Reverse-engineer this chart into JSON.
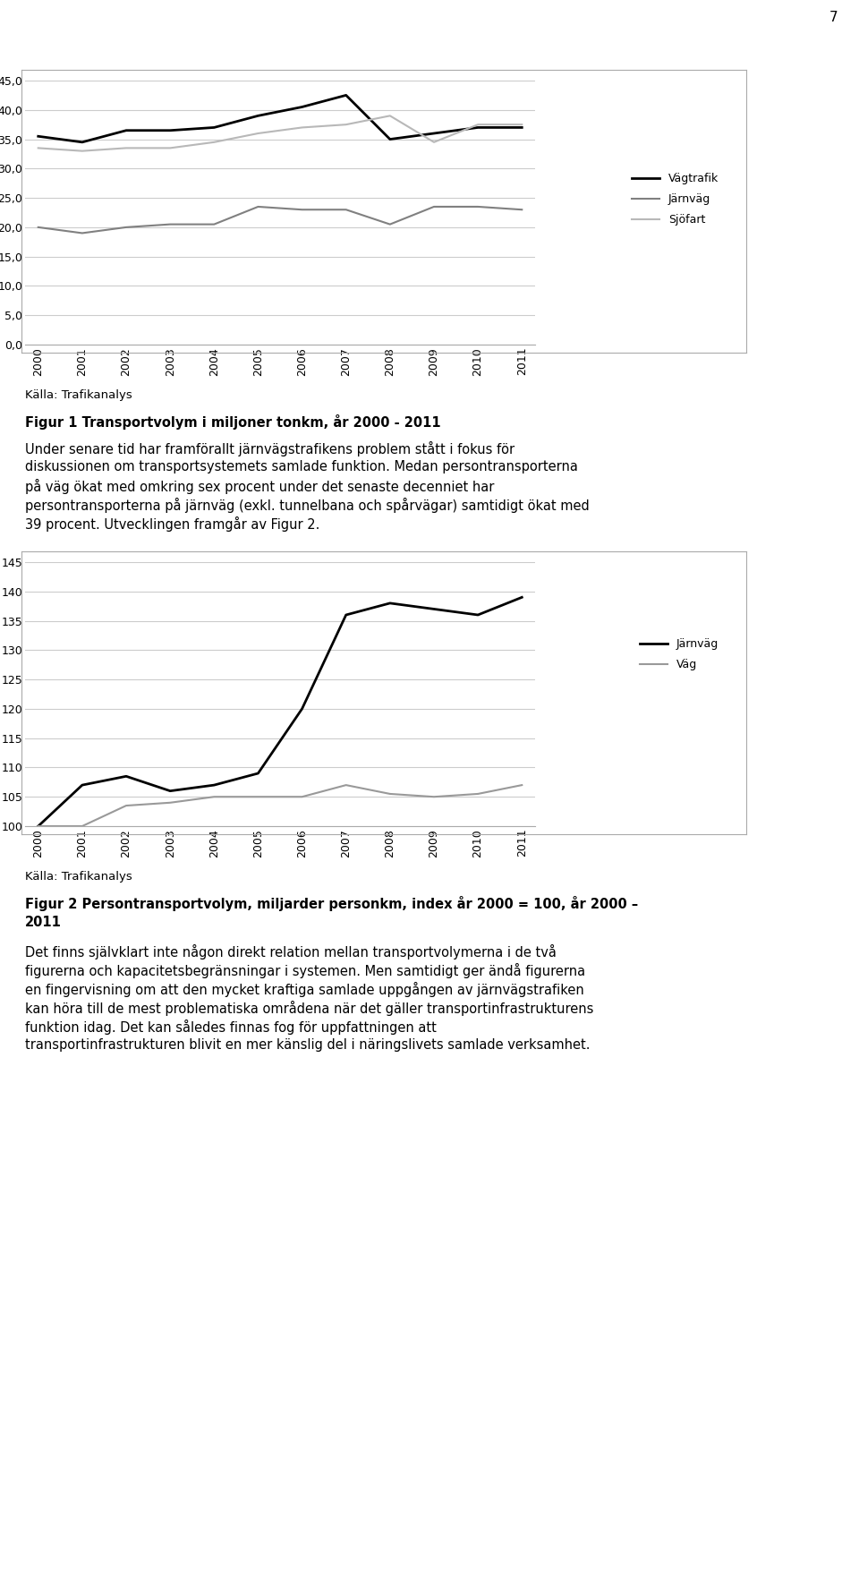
{
  "years": [
    2000,
    2001,
    2002,
    2003,
    2004,
    2005,
    2006,
    2007,
    2008,
    2009,
    2010,
    2011
  ],
  "fig1": {
    "vagtrafik": [
      35.5,
      34.5,
      36.5,
      36.5,
      37.0,
      39.0,
      40.5,
      42.5,
      35.0,
      36.0,
      37.0,
      37.0
    ],
    "jarnvag": [
      20.0,
      19.0,
      20.0,
      20.5,
      20.5,
      23.5,
      23.0,
      23.0,
      20.5,
      23.5,
      23.5,
      23.0
    ],
    "sjofarttrafik": [
      33.5,
      33.0,
      33.5,
      33.5,
      34.5,
      36.0,
      37.0,
      37.5,
      39.0,
      34.5,
      37.5,
      37.5
    ],
    "vagtrafik_color": "#000000",
    "jarnvag_color": "#808080",
    "sjofarttrafik_color": "#b8b8b8",
    "ylim": [
      0.0,
      45.0
    ],
    "yticks": [
      0.0,
      5.0,
      10.0,
      15.0,
      20.0,
      25.0,
      30.0,
      35.0,
      40.0,
      45.0
    ],
    "legend_labels": [
      "Vägtrafik",
      "Järnväg",
      "Sjöfart"
    ]
  },
  "fig2": {
    "jarnvag": [
      100,
      107,
      108.5,
      106,
      107,
      109,
      120,
      136,
      138,
      137,
      136,
      139
    ],
    "vag": [
      100,
      100,
      103.5,
      104,
      105,
      105,
      105,
      107,
      105.5,
      105,
      105.5,
      107
    ],
    "jarnvag_color": "#000000",
    "vag_color": "#999999",
    "ylim": [
      100,
      145
    ],
    "yticks": [
      100,
      105,
      110,
      115,
      120,
      125,
      130,
      135,
      140,
      145
    ],
    "legend_labels": [
      "Järnväg",
      "Väg"
    ]
  },
  "source_text": "Källa: Trafikanalys",
  "fig1_caption": "Figur 1 Transportvolym i miljoner tonkm, år 2000 - 2011",
  "fig1_body_lines": [
    "Under senare tid har framförallt järnvägstrafikens problem stått i fokus för",
    "diskussionen om transportsystemets samlade funktion. Medan persontransporterna",
    "på väg ökat med omkring sex procent under det senaste decenniet har",
    "persontransporterna på järnväg (exkl. tunnelbana och spårvägar) samtidigt ökat med",
    "39 procent. Utvecklingen framgår av Figur 2."
  ],
  "fig2_caption_lines": [
    "Figur 2 Persontransportvolym, miljarder personkm, index år 2000 = 100, år 2000 –",
    "2011"
  ],
  "fig2_body_lines": [
    "Det finns självklart inte någon direkt relation mellan transportvolymerna i de två",
    "figurerna och kapacitetsbegränsningar i systemen. Men samtidigt ger ändå figurerna",
    "en fingervisning om att den mycket kraftiga samlade uppgången av järnvägstrafiken",
    "kan höra till de mest problematiska områdena när det gäller transportinfrastrukturens",
    "funktion idag. Det kan således finnas fog för uppfattningen att",
    "transportinfrastrukturen blivit en mer känslig del i näringslivets samlade verksamhet."
  ],
  "page_number": "7",
  "bg_color": "#ffffff",
  "text_color": "#000000",
  "chart_border_color": "#aaaaaa",
  "grid_color": "#cccccc"
}
